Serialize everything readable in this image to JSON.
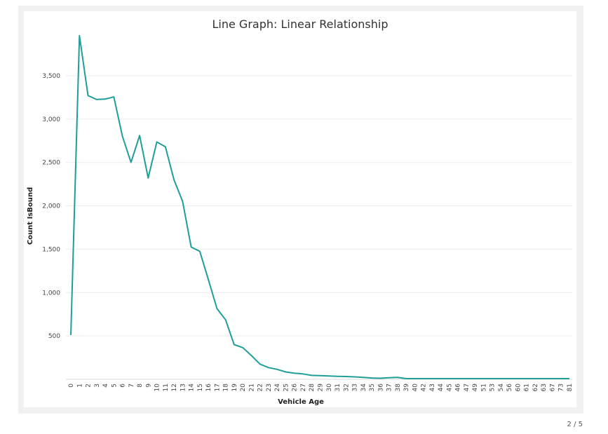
{
  "chart_data": {
    "type": "line",
    "title": "Line Graph: Linear Relationship",
    "xlabel": "Vehicle Age",
    "ylabel": "Count IsBound",
    "ylim": [
      0,
      4000
    ],
    "yticks": [
      500,
      1000,
      1500,
      2000,
      2500,
      3000,
      3500
    ],
    "ytick_labels": [
      "500",
      "1,000",
      "1,500",
      "2,000",
      "2,500",
      "3,000",
      "3,500"
    ],
    "grid": true,
    "series_color": "#1f9e98",
    "categories": [
      "0",
      "1",
      "2",
      "3",
      "4",
      "5",
      "6",
      "7",
      "8",
      "9",
      "10",
      "11",
      "12",
      "13",
      "14",
      "15",
      "16",
      "17",
      "18",
      "19",
      "20",
      "21",
      "22",
      "23",
      "24",
      "25",
      "26",
      "27",
      "28",
      "29",
      "30",
      "31",
      "32",
      "33",
      "34",
      "35",
      "36",
      "37",
      "38",
      "39",
      "40",
      "42",
      "43",
      "44",
      "45",
      "46",
      "47",
      "49",
      "51",
      "53",
      "54",
      "56",
      "60",
      "61",
      "62",
      "63",
      "67",
      "73",
      "81"
    ],
    "values": [
      510,
      3960,
      3270,
      3225,
      3230,
      3255,
      2800,
      2500,
      2810,
      2320,
      2735,
      2680,
      2300,
      2050,
      1525,
      1475,
      1150,
      815,
      685,
      400,
      365,
      275,
      175,
      135,
      115,
      85,
      70,
      62,
      45,
      43,
      38,
      35,
      32,
      28,
      22,
      15,
      12,
      18,
      22,
      8,
      8,
      8,
      8,
      8,
      8,
      8,
      8,
      8,
      8,
      8,
      8,
      8,
      8,
      8,
      8,
      8,
      8,
      8,
      8
    ]
  },
  "pagination": {
    "label": "2 / 5"
  }
}
